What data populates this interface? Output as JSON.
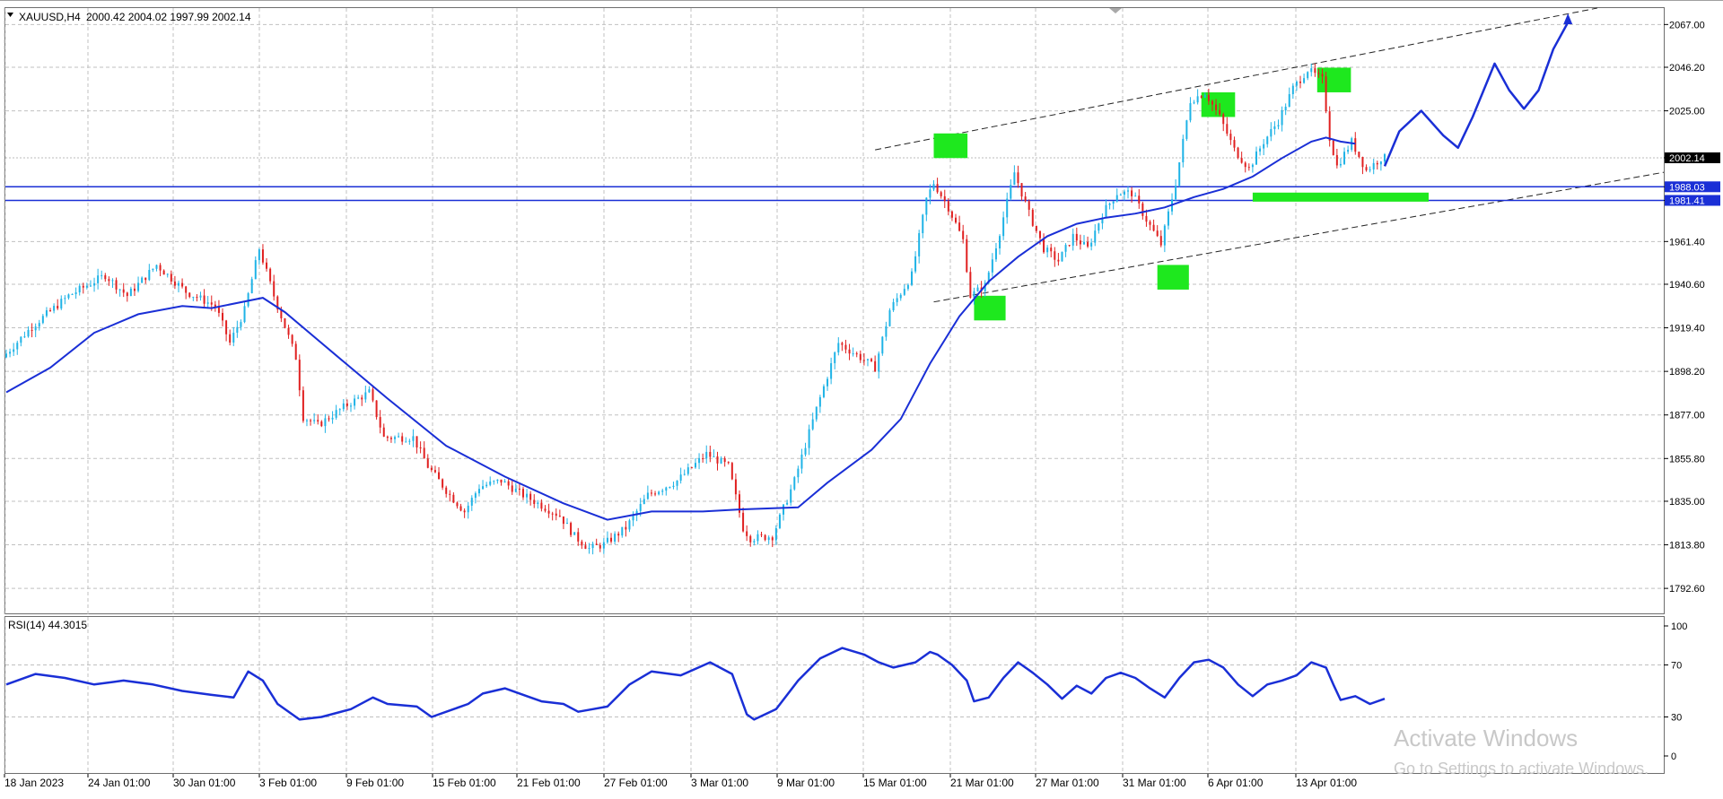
{
  "header": {
    "symbol": "XAUUSD,H4",
    "ohlc": "2000.42 2004.02 1997.99 2002.14"
  },
  "watermark": {
    "line1": "Activate Windows",
    "line2": "Go to Settings to activate Windows."
  },
  "colors": {
    "background": "#ffffff",
    "grid": "#c0c0c0",
    "bull_candle": "#1fb3e6",
    "bear_candle": "#e02020",
    "moving_average": "#1a2fd6",
    "rsi_line": "#1a2fd6",
    "support_lines": "#1a2fd6",
    "channel_lines": "#222222",
    "highlight_boxes": "#1ee81e",
    "current_price_tag": "#000000"
  },
  "chart_data": [
    {
      "type": "candlestick",
      "ylim": [
        1780,
        2075
      ],
      "y_ticks": [
        "2067.00",
        "2046.20",
        "2025.00",
        "2002.14",
        "1988.03",
        "1981.41",
        "1961.40",
        "1940.60",
        "1919.40",
        "1898.20",
        "1877.00",
        "1855.80",
        "1835.00",
        "1813.80",
        "1792.60"
      ],
      "x_ticks": [
        "18 Jan 2023",
        "24 Jan 01:00",
        "30 Jan 01:00",
        "3 Feb 01:00",
        "9 Feb 01:00",
        "15 Feb 01:00",
        "21 Feb 01:00",
        "27 Feb 01:00",
        "3 Mar 01:00",
        "9 Mar 01:00",
        "15 Mar 01:00",
        "21 Mar 01:00",
        "27 Mar 01:00",
        "31 Mar 01:00",
        "6 Apr 01:00",
        "13 Apr 01:00"
      ],
      "price_path": [
        [
          0,
          1905
        ],
        [
          4,
          1920
        ],
        [
          9,
          1935
        ],
        [
          14,
          1945
        ],
        [
          17,
          1935
        ],
        [
          21,
          1950
        ],
        [
          25,
          1937
        ],
        [
          29,
          1930
        ],
        [
          31,
          1912
        ],
        [
          33,
          1928
        ],
        [
          35,
          1958
        ],
        [
          37,
          1935
        ],
        [
          40,
          1905
        ],
        [
          41,
          1876
        ],
        [
          43,
          1872
        ],
        [
          47,
          1882
        ],
        [
          50,
          1888
        ],
        [
          52,
          1866
        ],
        [
          56,
          1866
        ],
        [
          58,
          1852
        ],
        [
          61,
          1838
        ],
        [
          63,
          1830
        ],
        [
          65,
          1842
        ],
        [
          68,
          1845
        ],
        [
          71,
          1838
        ],
        [
          73,
          1834
        ],
        [
          76,
          1828
        ],
        [
          78,
          1818
        ],
        [
          80,
          1812
        ],
        [
          82,
          1814
        ],
        [
          85,
          1822
        ],
        [
          88,
          1838
        ],
        [
          92,
          1845
        ],
        [
          96,
          1858
        ],
        [
          99,
          1852
        ],
        [
          101,
          1822
        ],
        [
          102,
          1817
        ],
        [
          105,
          1818
        ],
        [
          108,
          1845
        ],
        [
          111,
          1880
        ],
        [
          114,
          1912
        ],
        [
          117,
          1905
        ],
        [
          119,
          1900
        ],
        [
          121,
          1928
        ],
        [
          124,
          1945
        ],
        [
          126,
          1982
        ],
        [
          127,
          1990
        ],
        [
          129,
          1978
        ],
        [
          131,
          1962
        ],
        [
          132,
          1935
        ],
        [
          134,
          1940
        ],
        [
          136,
          1966
        ],
        [
          138,
          1995
        ],
        [
          140,
          1975
        ],
        [
          142,
          1958
        ],
        [
          144,
          1952
        ],
        [
          146,
          1964
        ],
        [
          148,
          1958
        ],
        [
          150,
          1975
        ],
        [
          152,
          1985
        ],
        [
          154,
          1985
        ],
        [
          156,
          1972
        ],
        [
          158,
          1960
        ],
        [
          160,
          1990
        ],
        [
          162,
          2030
        ],
        [
          164,
          2034
        ],
        [
          166,
          2022
        ],
        [
          168,
          2006
        ],
        [
          170,
          1997
        ],
        [
          172,
          2010
        ],
        [
          174,
          2020
        ],
        [
          176,
          2036
        ],
        [
          178,
          2045
        ],
        [
          180,
          2040
        ],
        [
          181,
          2012
        ],
        [
          182,
          1998
        ],
        [
          184,
          2010
        ],
        [
          186,
          1996
        ],
        [
          188,
          2002
        ]
      ],
      "moving_average": [
        [
          0,
          1888
        ],
        [
          6,
          1900
        ],
        [
          12,
          1917
        ],
        [
          18,
          1926
        ],
        [
          24,
          1930
        ],
        [
          28,
          1929
        ],
        [
          35,
          1934
        ],
        [
          38,
          1927
        ],
        [
          45,
          1906
        ],
        [
          52,
          1885
        ],
        [
          60,
          1862
        ],
        [
          68,
          1847
        ],
        [
          76,
          1834
        ],
        [
          82,
          1826
        ],
        [
          88,
          1830
        ],
        [
          95,
          1830
        ],
        [
          100,
          1831
        ],
        [
          108,
          1832
        ],
        [
          112,
          1844
        ],
        [
          118,
          1860
        ],
        [
          122,
          1875
        ],
        [
          126,
          1902
        ],
        [
          130,
          1925
        ],
        [
          134,
          1942
        ],
        [
          138,
          1954
        ],
        [
          142,
          1964
        ],
        [
          146,
          1970
        ],
        [
          150,
          1973
        ],
        [
          154,
          1975
        ],
        [
          158,
          1978
        ],
        [
          162,
          1983
        ],
        [
          166,
          1987
        ],
        [
          170,
          1993
        ],
        [
          174,
          2002
        ],
        [
          178,
          2010
        ],
        [
          180,
          2012
        ],
        [
          182,
          2010
        ],
        [
          184,
          2009
        ]
      ],
      "horizontal_lines": [
        1988.03,
        1981.41
      ],
      "current_price": 2002.14,
      "channel_upper": [
        [
          118.5,
          2006
        ],
        [
          217,
          2075
        ]
      ],
      "channel_lower": [
        [
          126.5,
          1932
        ],
        [
          237,
          2002
        ]
      ],
      "forecast_path": [
        [
          188,
          1998
        ],
        [
          190,
          2015
        ],
        [
          193,
          2025
        ],
        [
          196,
          2013
        ],
        [
          198,
          2007
        ],
        [
          200,
          2022
        ],
        [
          203,
          2048
        ],
        [
          205,
          2035
        ],
        [
          207,
          2026
        ],
        [
          209,
          2035
        ],
        [
          211,
          2055
        ],
        [
          213,
          2068
        ]
      ],
      "highlight_boxes": [
        [
          126.5,
          2008,
          4.6,
          12
        ],
        [
          132,
          1929,
          4.3,
          12
        ],
        [
          163,
          2028,
          4.6,
          12
        ],
        [
          157,
          1944,
          4.3,
          12
        ],
        [
          178.8,
          2040,
          4.6,
          12
        ],
        [
          170,
          1983,
          24,
          4.4
        ]
      ]
    },
    {
      "type": "line",
      "title": "RSI(14) 44.3015",
      "ylim": [
        0,
        100
      ],
      "y_ticks": [
        "100",
        "70",
        "30",
        "0"
      ],
      "values": [
        [
          0,
          55
        ],
        [
          4,
          63
        ],
        [
          8,
          60
        ],
        [
          12,
          55
        ],
        [
          16,
          58
        ],
        [
          20,
          55
        ],
        [
          24,
          50
        ],
        [
          28,
          47
        ],
        [
          31,
          45
        ],
        [
          33,
          65
        ],
        [
          35,
          58
        ],
        [
          37,
          40
        ],
        [
          40,
          28
        ],
        [
          43,
          30
        ],
        [
          47,
          36
        ],
        [
          50,
          45
        ],
        [
          52,
          40
        ],
        [
          56,
          38
        ],
        [
          58,
          30
        ],
        [
          61,
          36
        ],
        [
          63,
          40
        ],
        [
          65,
          48
        ],
        [
          68,
          52
        ],
        [
          71,
          46
        ],
        [
          73,
          42
        ],
        [
          76,
          40
        ],
        [
          78,
          34
        ],
        [
          80,
          36
        ],
        [
          82,
          38
        ],
        [
          85,
          55
        ],
        [
          88,
          65
        ],
        [
          92,
          62
        ],
        [
          96,
          72
        ],
        [
          99,
          63
        ],
        [
          101,
          32
        ],
        [
          102,
          28
        ],
        [
          105,
          36
        ],
        [
          108,
          58
        ],
        [
          111,
          75
        ],
        [
          114,
          83
        ],
        [
          117,
          78
        ],
        [
          119,
          72
        ],
        [
          121,
          68
        ],
        [
          124,
          72
        ],
        [
          126,
          80
        ],
        [
          127,
          78
        ],
        [
          129,
          70
        ],
        [
          131,
          58
        ],
        [
          132,
          42
        ],
        [
          134,
          45
        ],
        [
          136,
          60
        ],
        [
          138,
          72
        ],
        [
          140,
          64
        ],
        [
          142,
          55
        ],
        [
          144,
          44
        ],
        [
          146,
          54
        ],
        [
          148,
          48
        ],
        [
          150,
          60
        ],
        [
          152,
          64
        ],
        [
          154,
          60
        ],
        [
          156,
          52
        ],
        [
          158,
          45
        ],
        [
          160,
          60
        ],
        [
          162,
          72
        ],
        [
          164,
          74
        ],
        [
          166,
          68
        ],
        [
          168,
          55
        ],
        [
          170,
          46
        ],
        [
          172,
          55
        ],
        [
          174,
          58
        ],
        [
          176,
          62
        ],
        [
          178,
          72
        ],
        [
          180,
          68
        ],
        [
          181,
          55
        ],
        [
          182,
          43
        ],
        [
          184,
          46
        ],
        [
          186,
          40
        ],
        [
          188,
          44
        ]
      ]
    }
  ]
}
